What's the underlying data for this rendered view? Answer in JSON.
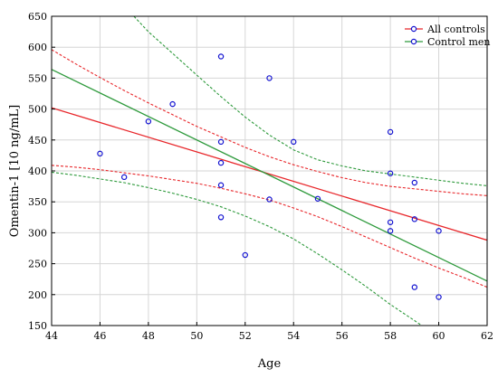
{
  "chart_data": {
    "type": "scatter",
    "xlabel": "Age",
    "ylabel": "Omentin-1 [10 ng/mL]",
    "xlim": [
      44,
      62
    ],
    "ylim": [
      150,
      650
    ],
    "x_ticks": [
      44,
      46,
      48,
      50,
      52,
      54,
      56,
      58,
      60,
      62
    ],
    "y_ticks": [
      150,
      200,
      250,
      300,
      350,
      400,
      450,
      500,
      550,
      600,
      650
    ],
    "grid": true,
    "legend_position": "top-right",
    "points": [
      {
        "x": 46,
        "y": 428
      },
      {
        "x": 47,
        "y": 390
      },
      {
        "x": 48,
        "y": 480
      },
      {
        "x": 49,
        "y": 508
      },
      {
        "x": 51,
        "y": 585
      },
      {
        "x": 51,
        "y": 447
      },
      {
        "x": 51,
        "y": 413
      },
      {
        "x": 51,
        "y": 377
      },
      {
        "x": 51,
        "y": 325
      },
      {
        "x": 52,
        "y": 264
      },
      {
        "x": 53,
        "y": 550
      },
      {
        "x": 53,
        "y": 354
      },
      {
        "x": 54,
        "y": 447
      },
      {
        "x": 55,
        "y": 355
      },
      {
        "x": 58,
        "y": 463
      },
      {
        "x": 58,
        "y": 396
      },
      {
        "x": 58,
        "y": 317
      },
      {
        "x": 58,
        "y": 303
      },
      {
        "x": 59,
        "y": 381
      },
      {
        "x": 59,
        "y": 322
      },
      {
        "x": 59,
        "y": 212
      },
      {
        "x": 60,
        "y": 303
      },
      {
        "x": 60,
        "y": 196
      }
    ],
    "series": [
      {
        "name": "All controls",
        "color": "#e8262a",
        "fit": [
          [
            44,
            502
          ],
          [
            62,
            288
          ]
        ],
        "ci_upper": [
          [
            44,
            596
          ],
          [
            45,
            573
          ],
          [
            46,
            551
          ],
          [
            47,
            530
          ],
          [
            48,
            510
          ],
          [
            49,
            491
          ],
          [
            50,
            472
          ],
          [
            51,
            455
          ],
          [
            52,
            438
          ],
          [
            53,
            423
          ],
          [
            54,
            410
          ],
          [
            55,
            399
          ],
          [
            56,
            389
          ],
          [
            57,
            381
          ],
          [
            58,
            375
          ],
          [
            59,
            371
          ],
          [
            60,
            367
          ],
          [
            61,
            363
          ],
          [
            62,
            360
          ]
        ],
        "ci_lower": [
          [
            44,
            409
          ],
          [
            45,
            406
          ],
          [
            46,
            402
          ],
          [
            47,
            397
          ],
          [
            48,
            392
          ],
          [
            49,
            386
          ],
          [
            50,
            380
          ],
          [
            51,
            372
          ],
          [
            52,
            363
          ],
          [
            53,
            353
          ],
          [
            54,
            340
          ],
          [
            55,
            326
          ],
          [
            56,
            310
          ],
          [
            57,
            293
          ],
          [
            58,
            276
          ],
          [
            59,
            259
          ],
          [
            60,
            243
          ],
          [
            61,
            228
          ],
          [
            62,
            212
          ]
        ]
      },
      {
        "name": "Control men",
        "color": "#2e9a3c",
        "fit": [
          [
            44,
            564
          ],
          [
            62,
            222
          ]
        ],
        "ci_upper": [
          [
            47.4,
            650
          ],
          [
            48,
            625
          ],
          [
            49,
            590
          ],
          [
            50,
            555
          ],
          [
            51,
            520
          ],
          [
            52,
            487
          ],
          [
            53,
            458
          ],
          [
            54,
            434
          ],
          [
            55,
            418
          ],
          [
            56,
            408
          ],
          [
            57,
            400
          ],
          [
            58,
            395
          ],
          [
            59,
            390
          ],
          [
            60,
            385
          ],
          [
            61,
            380
          ],
          [
            62,
            376
          ]
        ],
        "ci_lower": [
          [
            44,
            398
          ],
          [
            45,
            393
          ],
          [
            46,
            387
          ],
          [
            47,
            381
          ],
          [
            48,
            373
          ],
          [
            49,
            364
          ],
          [
            50,
            354
          ],
          [
            51,
            342
          ],
          [
            52,
            327
          ],
          [
            53,
            310
          ],
          [
            54,
            290
          ],
          [
            55,
            266
          ],
          [
            56,
            240
          ],
          [
            57,
            213
          ],
          [
            58,
            184
          ],
          [
            59,
            158
          ],
          [
            59.3,
            150
          ]
        ]
      }
    ]
  }
}
